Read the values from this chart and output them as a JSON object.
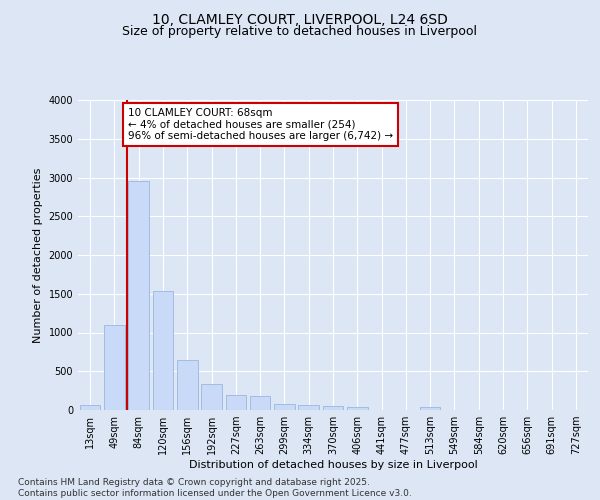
{
  "title": "10, CLAMLEY COURT, LIVERPOOL, L24 6SD",
  "subtitle": "Size of property relative to detached houses in Liverpool",
  "xlabel": "Distribution of detached houses by size in Liverpool",
  "ylabel": "Number of detached properties",
  "bar_labels": [
    "13sqm",
    "49sqm",
    "84sqm",
    "120sqm",
    "156sqm",
    "192sqm",
    "227sqm",
    "263sqm",
    "299sqm",
    "334sqm",
    "370sqm",
    "406sqm",
    "441sqm",
    "477sqm",
    "513sqm",
    "549sqm",
    "584sqm",
    "620sqm",
    "656sqm",
    "691sqm",
    "727sqm"
  ],
  "bar_values": [
    60,
    1100,
    2950,
    1530,
    650,
    330,
    190,
    185,
    80,
    70,
    50,
    40,
    5,
    5,
    40,
    5,
    5,
    5,
    5,
    5,
    5
  ],
  "bar_color": "#c9daf8",
  "bar_edgecolor": "#a0bce0",
  "ylim": [
    0,
    4000
  ],
  "yticks": [
    0,
    500,
    1000,
    1500,
    2000,
    2500,
    3000,
    3500,
    4000
  ],
  "vline_x": 1.5,
  "vline_color": "#cc0000",
  "annotation_text": "10 CLAMLEY COURT: 68sqm\n← 4% of detached houses are smaller (254)\n96% of semi-detached houses are larger (6,742) →",
  "annotation_bbox_edgecolor": "#cc0000",
  "annotation_bbox_facecolor": "#ffffff",
  "footer_line1": "Contains HM Land Registry data © Crown copyright and database right 2025.",
  "footer_line2": "Contains public sector information licensed under the Open Government Licence v3.0.",
  "background_color": "#dce6f5",
  "plot_background_color": "#dce6f5",
  "title_fontsize": 10,
  "subtitle_fontsize": 9,
  "axis_label_fontsize": 8,
  "tick_fontsize": 7,
  "annotation_fontsize": 7.5,
  "footer_fontsize": 6.5
}
